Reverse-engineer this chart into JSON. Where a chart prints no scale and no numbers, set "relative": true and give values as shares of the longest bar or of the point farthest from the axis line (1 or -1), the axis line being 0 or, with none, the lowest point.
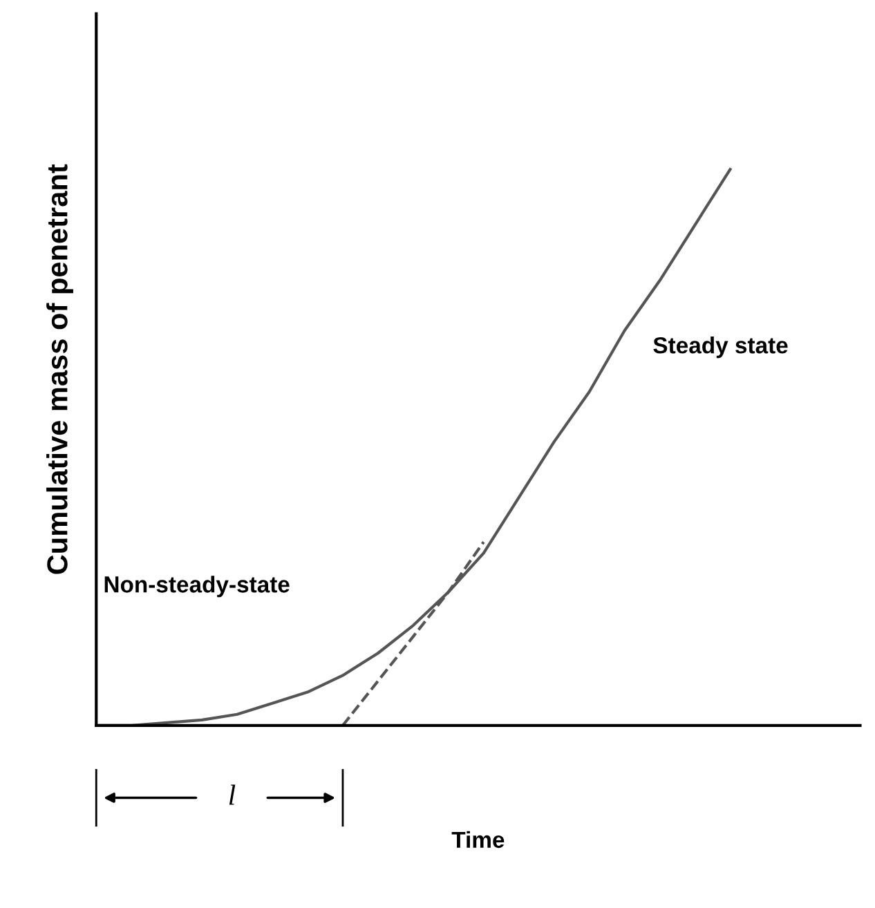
{
  "chart_data": {
    "type": "line",
    "relative": true,
    "xlabel": "Time",
    "ylabel": "Cumulative mass of penetrant",
    "categories": [
      null,
      null,
      null,
      null,
      null,
      null,
      null,
      null,
      null,
      null,
      null,
      null,
      null,
      null,
      null,
      null,
      null,
      null,
      null
    ],
    "series": [
      {
        "color": "#555555",
        "line_style": "solid",
        "values": [
          0,
          0,
          0.005,
          0.01,
          0.02,
          0.04,
          0.06,
          0.09,
          0.13,
          0.18,
          0.24,
          0.31,
          0.41,
          0.51,
          0.6,
          0.71,
          0.8,
          0.9,
          1
        ]
      },
      {
        "color": "#555555",
        "line_style": "dashed",
        "values": [
          null,
          null,
          null,
          null,
          null,
          null,
          null,
          0,
          0.08,
          0.16,
          0.24,
          0.33,
          null,
          null,
          null,
          null,
          null,
          null,
          null
        ]
      }
    ],
    "annotations": [
      "Non-steady-state",
      "Steady state",
      "l"
    ],
    "marker": "none"
  }
}
